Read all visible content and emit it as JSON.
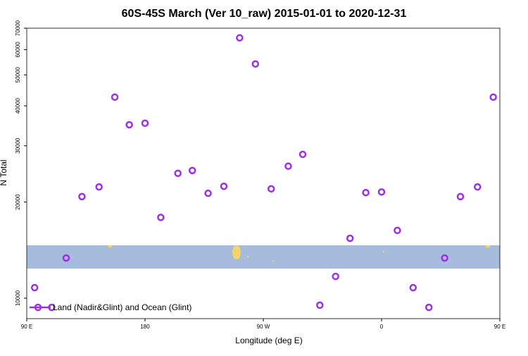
{
  "chart_data": {
    "type": "scatter",
    "title": "60S-45S March (Ver 10_raw)   2015-01-01 to 2020-12-31",
    "x_label": "Longitude (deg E)",
    "y_label": "N Total",
    "series": [
      {
        "name": "Land (Nadir&Glint) and Ocean (Glint)",
        "color": "#9b30e8",
        "x": [
          96,
          109,
          120,
          132,
          145,
          157,
          168,
          180,
          192,
          205,
          216,
          228,
          240,
          252,
          264,
          276,
          289,
          300,
          313,
          325,
          336,
          348,
          360,
          372,
          384,
          396,
          408,
          420,
          433,
          445
        ],
        "values": [
          10790,
          9360,
          13360,
          20800,
          22300,
          42600,
          34900,
          35300,
          17900,
          24600,
          25100,
          21300,
          22400,
          65300,
          54100,
          22000,
          25900,
          28200,
          9510,
          11700,
          15400,
          21400,
          21500,
          16300,
          10790,
          9360,
          13360,
          20800,
          22300,
          42600
        ]
      }
    ],
    "xlim": [
      90,
      450
    ],
    "xticks": [
      {
        "value": 90,
        "label": "90 E"
      },
      {
        "value": 180,
        "label": "180"
      },
      {
        "value": 270,
        "label": "90 W"
      },
      {
        "value": 360,
        "label": "0"
      },
      {
        "value": 450,
        "label": "90 E"
      }
    ],
    "ylim": [
      8630,
      70000
    ],
    "yticks": [
      10000,
      20000,
      30000,
      40000,
      50000,
      60000,
      70000
    ],
    "log_y": true,
    "legend": "bottom-left"
  }
}
